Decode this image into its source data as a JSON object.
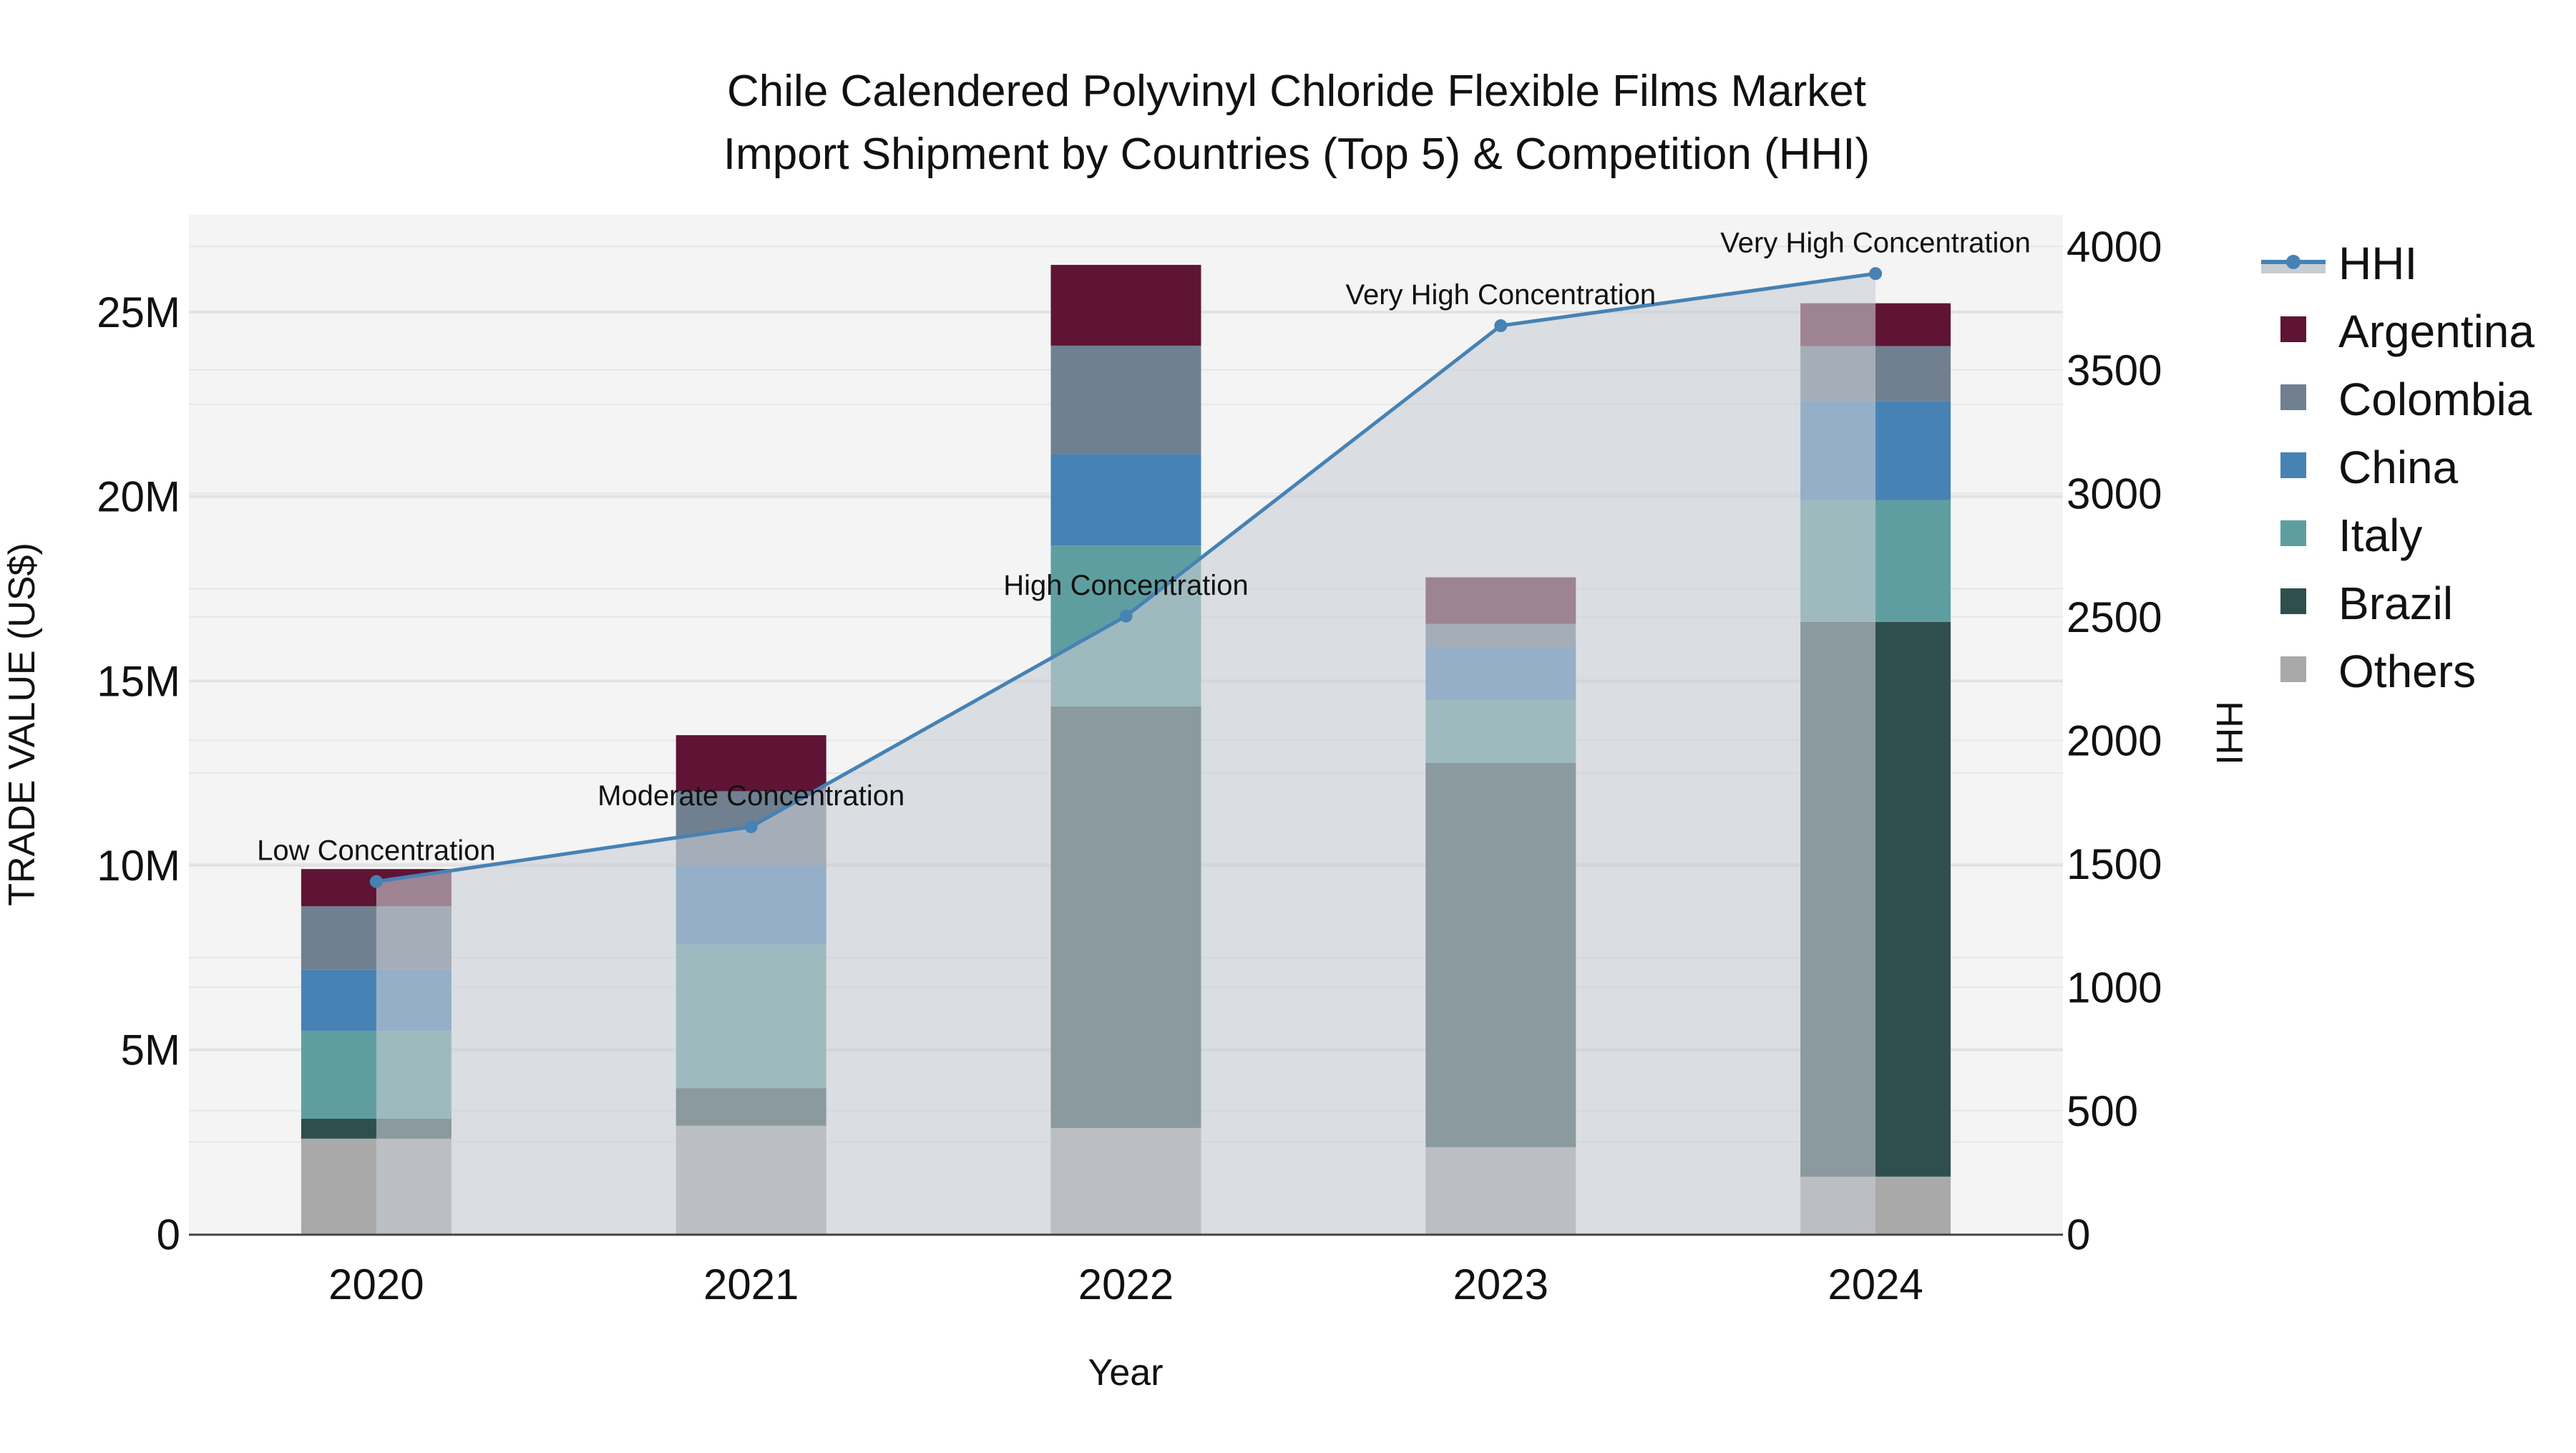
{
  "title": {
    "line1": "Chile Calendered Polyvinyl Chloride Flexible Films Market",
    "line2": "Import Shipment by Countries (Top 5) & Competition (HHI)"
  },
  "axes": {
    "x_title": "Year",
    "y_left_title": "TRADE VALUE (US$)",
    "y_right_title": "HHI",
    "y_left_ticks": [
      "0",
      "5M",
      "10M",
      "15M",
      "20M",
      "25M"
    ],
    "y_right_ticks": [
      "0",
      "500",
      "1000",
      "1500",
      "2000",
      "2500",
      "3000",
      "3500",
      "4000"
    ]
  },
  "legend": {
    "items": [
      {
        "label": "HHI",
        "type": "line",
        "color": "#4682b4"
      },
      {
        "label": "Argentina",
        "type": "bar",
        "color": "#5f1435"
      },
      {
        "label": "Colombia",
        "type": "bar",
        "color": "#708090"
      },
      {
        "label": "China",
        "type": "bar",
        "color": "#4682b4"
      },
      {
        "label": "Italy",
        "type": "bar",
        "color": "#5f9ea0"
      },
      {
        "label": "Brazil",
        "type": "bar",
        "color": "#2f4f4f"
      },
      {
        "label": "Others",
        "type": "bar",
        "color": "#a9a9a9"
      }
    ]
  },
  "chart_data": {
    "type": "bar",
    "stacked": true,
    "title": "Chile Calendered Polyvinyl Chloride Flexible Films Market Import Shipment by Countries (Top 5) & Competition (HHI)",
    "xlabel": "Year",
    "ylabel": "TRADE VALUE (US$)",
    "y2label": "HHI",
    "categories": [
      "2020",
      "2021",
      "2022",
      "2023",
      "2024"
    ],
    "ylim": [
      0,
      27640000
    ],
    "y2lim": [
      0,
      4128
    ],
    "grid": true,
    "legend_position": "right",
    "series": [
      {
        "name": "Others",
        "color": "#a9a9a9",
        "values": [
          2590000,
          2940000,
          2880000,
          2360000,
          1560000
        ]
      },
      {
        "name": "Brazil",
        "color": "#2f4f4f",
        "values": [
          540000,
          1020000,
          11430000,
          10420000,
          15040000
        ]
      },
      {
        "name": "Italy",
        "color": "#5f9ea0",
        "values": [
          2380000,
          3890000,
          4360000,
          1710000,
          3300000
        ]
      },
      {
        "name": "China",
        "color": "#4682b4",
        "values": [
          1660000,
          2130000,
          2480000,
          1430000,
          2690000
        ]
      },
      {
        "name": "Colombia",
        "color": "#708090",
        "values": [
          1720000,
          2030000,
          2940000,
          630000,
          1490000
        ]
      },
      {
        "name": "Argentina",
        "color": "#5f1435",
        "values": [
          1010000,
          1520000,
          2190000,
          1260000,
          1160000
        ]
      }
    ],
    "line_series": {
      "name": "HHI",
      "axis": "right",
      "color": "#4682b4",
      "fill": "#c8cdd4",
      "values": [
        1428,
        1650,
        2503,
        3679,
        3890
      ],
      "annotations": [
        "Low Concentration",
        "Moderate Concentration",
        "High Concentration",
        "Very High Concentration",
        "Very High Concentration"
      ]
    }
  }
}
